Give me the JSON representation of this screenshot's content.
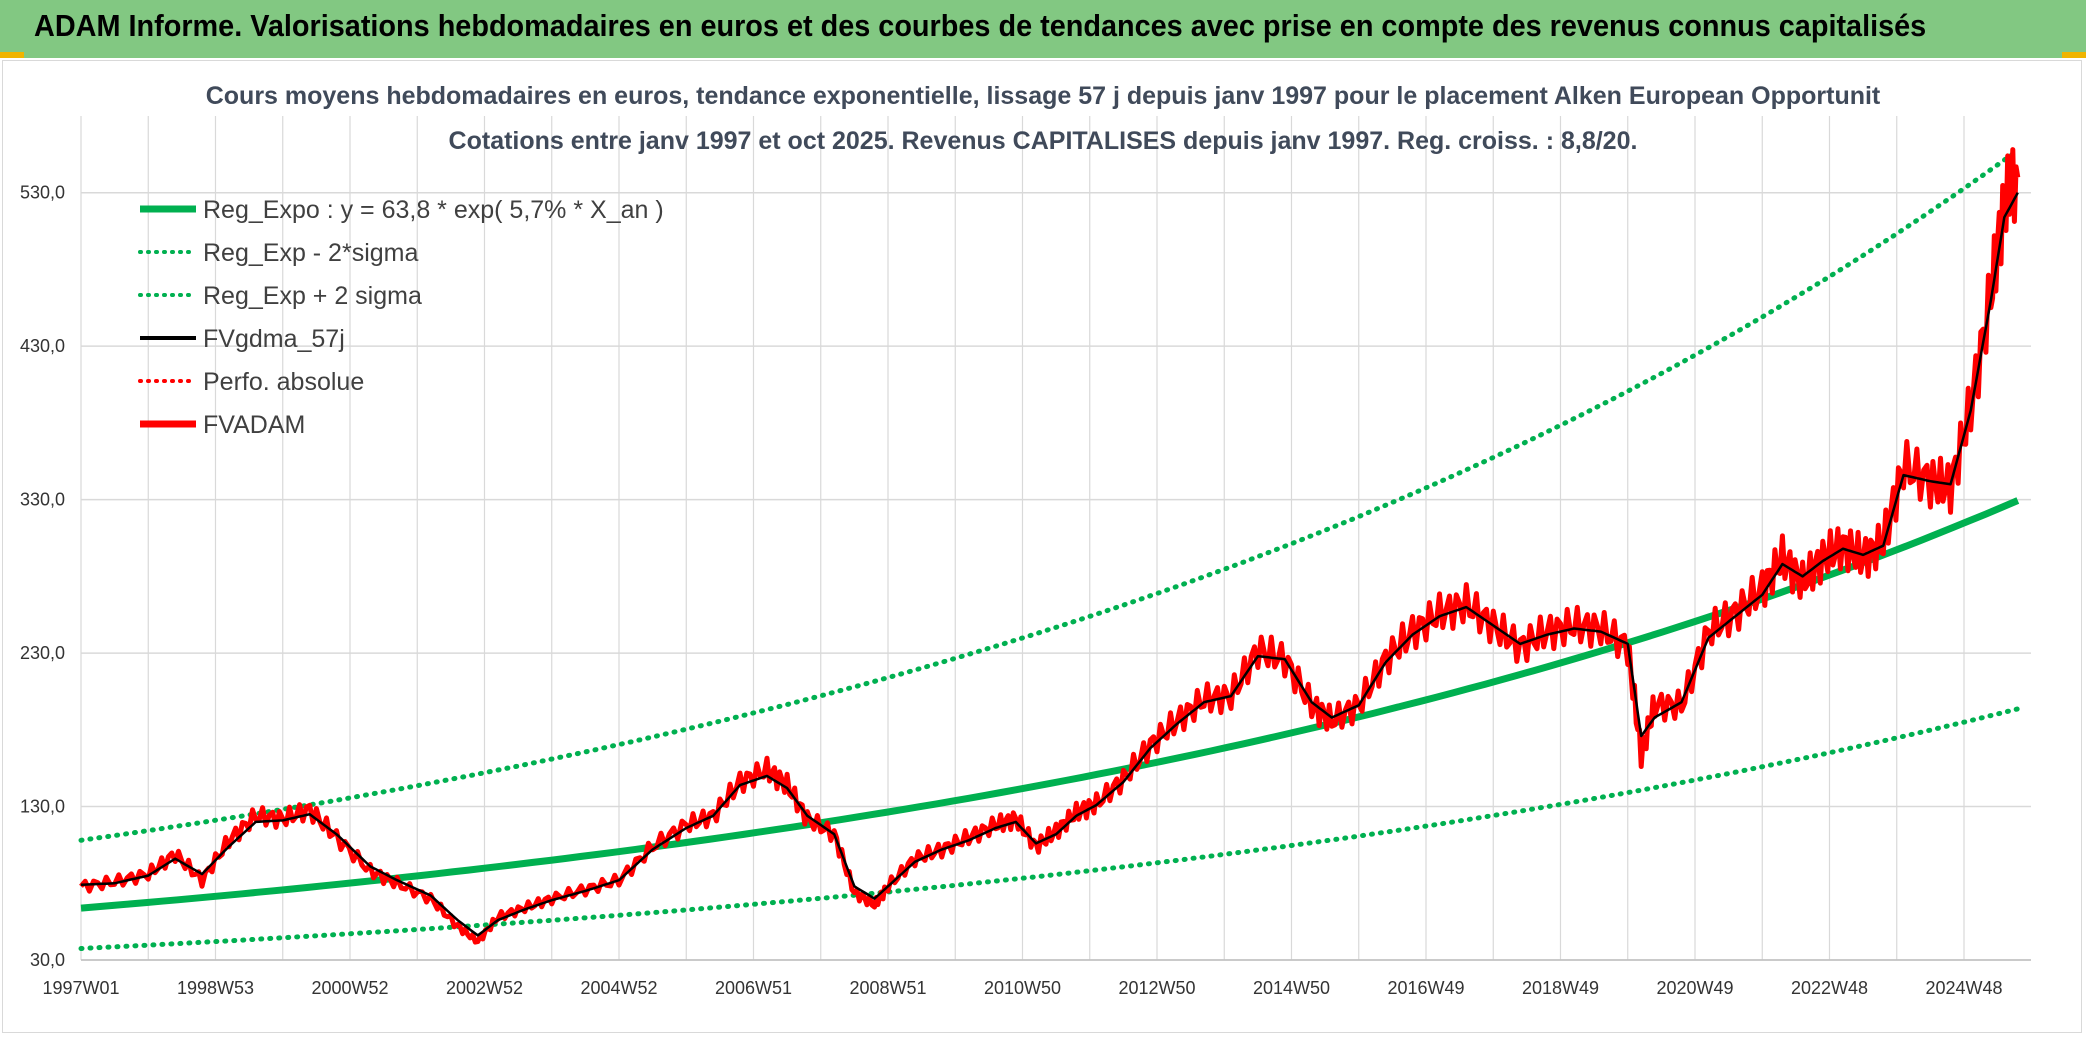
{
  "page": {
    "title": "ADAM Informe. Valorisations hebdomadaires en euros et des courbes de tendances avec prise en compte des revenus connus capitalisés"
  },
  "colors": {
    "header_bg": "#82c882",
    "accent": "#f0b400",
    "reg_expo": "#00b050",
    "fvgdma": "#000000",
    "fvadam": "#ff0000",
    "perfo": "#ff0000",
    "grid": "#d9d9d9"
  },
  "chart_data": {
    "type": "line",
    "title_line1": "Cours moyens hebdomadaires en euros, tendance exponentielle, lissage 57 j depuis janv 1997 pour le placement Alken European Opportunit",
    "title_line2": "Cotations entre janv 1997 et oct 2025. Revenus CAPITALISES depuis janv 1997. Reg. croiss. : 8,8/20.",
    "xlabel": "",
    "ylabel": "",
    "x_ticks": [
      "1997W01",
      "1998W53",
      "2000W52",
      "2002W52",
      "2004W52",
      "2006W51",
      "2008W51",
      "2010W50",
      "2012W50",
      "2014W50",
      "2016W49",
      "2018W49",
      "2020W49",
      "2022W48",
      "2024W48"
    ],
    "x_range": [
      1997.0,
      2025.8
    ],
    "y_ticks": [
      "30,0",
      "130,0",
      "230,0",
      "330,0",
      "430,0",
      "530,0"
    ],
    "ylim": [
      30,
      580
    ],
    "grid": true,
    "legend_position": "top-left",
    "legend": [
      {
        "label": "Reg_Expo : y = 63,8 * exp( 5,7% *  X_an )",
        "style": "solid-thick",
        "color": "#00b050"
      },
      {
        "label": "Reg_Exp - 2*sigma",
        "style": "dotted",
        "color": "#00b050"
      },
      {
        "label": "Reg_Exp + 2 sigma",
        "style": "dotted",
        "color": "#00b050"
      },
      {
        "label": "FVgdma_57j",
        "style": "solid",
        "color": "#000000"
      },
      {
        "label": "Perfo. absolue",
        "style": "dotted",
        "color": "#ff0000"
      },
      {
        "label": "FVADAM",
        "style": "solid-thick",
        "color": "#ff0000"
      }
    ],
    "series": [
      {
        "name": "Reg_Expo : y = 63,8 * exp( 5,7% *  X_an )",
        "x_start": 1997.0,
        "x_end": 2025.8,
        "y_start": 63.8,
        "growth_rate": 0.057
      },
      {
        "name": "Reg_Exp - 2*sigma",
        "x_start": 1997.0,
        "x_end": 2025.8,
        "y_start": 37.5,
        "growth_rate": 0.057
      },
      {
        "name": "Reg_Exp + 2 sigma",
        "x_start": 1997.0,
        "x_end": 2025.8,
        "y_start": 108.0,
        "growth_rate": 0.057
      },
      {
        "name": "FVADAM",
        "x": [
          1997.0,
          1997.5,
          1998.0,
          1998.4,
          1998.8,
          1999.2,
          1999.6,
          2000.0,
          2000.4,
          2000.8,
          2001.3,
          2001.7,
          2002.2,
          2002.6,
          2002.9,
          2003.2,
          2003.6,
          2004.0,
          2004.5,
          2005.0,
          2005.5,
          2006.0,
          2006.4,
          2006.8,
          2007.2,
          2007.5,
          2007.8,
          2008.2,
          2008.5,
          2008.8,
          2009.0,
          2009.4,
          2009.8,
          2010.2,
          2010.6,
          2010.9,
          2011.2,
          2011.5,
          2011.8,
          2012.1,
          2012.5,
          2012.9,
          2013.3,
          2013.7,
          2014.1,
          2014.5,
          2014.9,
          2015.3,
          2015.6,
          2016.0,
          2016.4,
          2016.8,
          2017.2,
          2017.6,
          2018.0,
          2018.4,
          2018.8,
          2019.2,
          2019.6,
          2020.0,
          2020.2,
          2020.4,
          2020.8,
          2021.2,
          2021.6,
          2022.0,
          2022.3,
          2022.6,
          2022.9,
          2023.2,
          2023.5,
          2023.8,
          2024.1,
          2024.5,
          2024.8,
          2025.1,
          2025.4,
          2025.6,
          2025.8
        ],
        "y": [
          78,
          81,
          86,
          99,
          82,
          108,
          124,
          122,
          128,
          110,
          88,
          80,
          70,
          52,
          42,
          58,
          64,
          70,
          76,
          82,
          104,
          118,
          124,
          146,
          154,
          144,
          122,
          112,
          74,
          66,
          78,
          96,
          102,
          110,
          118,
          122,
          104,
          114,
          126,
          132,
          148,
          170,
          186,
          200,
          202,
          232,
          226,
          196,
          186,
          196,
          226,
          244,
          256,
          262,
          248,
          234,
          244,
          248,
          246,
          234,
          164,
          196,
          196,
          244,
          256,
          272,
          292,
          276,
          292,
          300,
          292,
          302,
          352,
          342,
          338,
          390,
          464,
          524,
          540
        ]
      },
      {
        "name": "FVgdma_57j",
        "x": [
          1997.0,
          1997.5,
          1998.0,
          1998.4,
          1998.8,
          1999.2,
          1999.6,
          2000.0,
          2000.4,
          2000.8,
          2001.3,
          2001.7,
          2002.2,
          2002.6,
          2002.9,
          2003.2,
          2003.6,
          2004.0,
          2004.5,
          2005.0,
          2005.5,
          2006.0,
          2006.4,
          2006.8,
          2007.2,
          2007.5,
          2007.8,
          2008.2,
          2008.5,
          2008.8,
          2009.0,
          2009.4,
          2009.8,
          2010.2,
          2010.6,
          2010.9,
          2011.2,
          2011.5,
          2011.8,
          2012.1,
          2012.5,
          2012.9,
          2013.3,
          2013.7,
          2014.1,
          2014.5,
          2014.9,
          2015.3,
          2015.6,
          2016.0,
          2016.4,
          2016.8,
          2017.2,
          2017.6,
          2018.0,
          2018.4,
          2018.8,
          2019.2,
          2019.6,
          2020.0,
          2020.2,
          2020.4,
          2020.8,
          2021.2,
          2021.6,
          2022.0,
          2022.3,
          2022.6,
          2022.9,
          2023.2,
          2023.5,
          2023.8,
          2024.1,
          2024.5,
          2024.8,
          2025.1,
          2025.4,
          2025.6,
          2025.8
        ],
        "y": [
          79,
          80,
          85,
          96,
          86,
          104,
          120,
          121,
          125,
          112,
          91,
          82,
          72,
          56,
          46,
          56,
          63,
          69,
          75,
          82,
          102,
          116,
          124,
          144,
          150,
          142,
          124,
          112,
          78,
          70,
          78,
          94,
          102,
          108,
          116,
          120,
          106,
          112,
          124,
          131,
          146,
          168,
          184,
          198,
          202,
          228,
          226,
          198,
          188,
          196,
          224,
          242,
          254,
          260,
          248,
          236,
          242,
          246,
          244,
          236,
          176,
          188,
          198,
          240,
          254,
          268,
          288,
          280,
          290,
          298,
          294,
          300,
          346,
          342,
          340,
          388,
          460,
          514,
          530
        ]
      }
    ]
  }
}
